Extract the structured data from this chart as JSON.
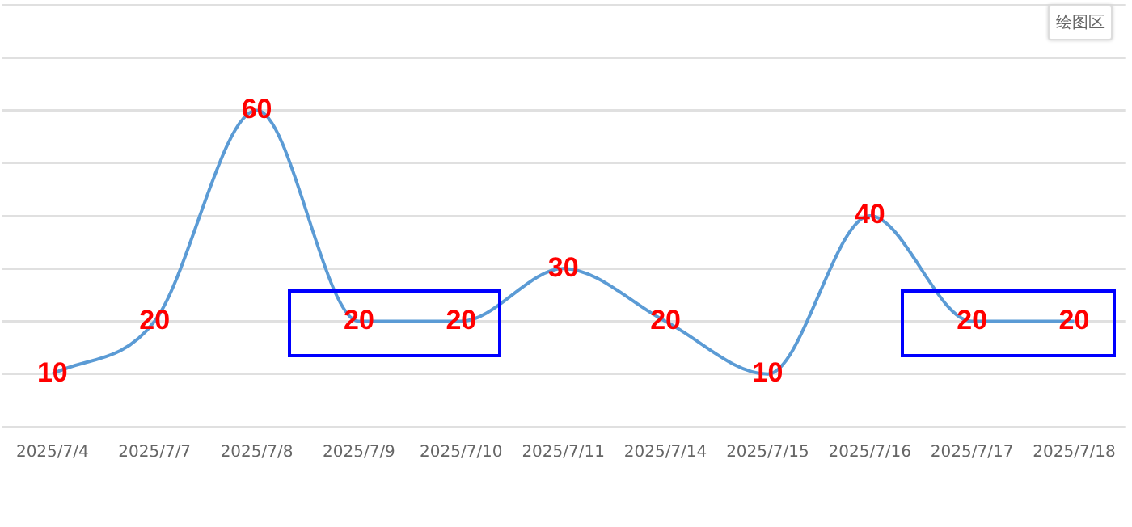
{
  "chart_data": {
    "type": "line",
    "categories": [
      "2025/7/4",
      "2025/7/7",
      "2025/7/8",
      "2025/7/9",
      "2025/7/10",
      "2025/7/11",
      "2025/7/14",
      "2025/7/15",
      "2025/7/16",
      "2025/7/17",
      "2025/7/18"
    ],
    "series": [
      {
        "color": "#5b9bd5",
        "values": [
          10,
          20,
          60,
          20,
          20,
          30,
          20,
          10,
          40,
          20,
          20
        ]
      }
    ],
    "ylim": [
      0,
      80
    ],
    "yticks": [
      {
        "value": 0,
        "label": null
      },
      {
        "value": 10,
        "label": null
      },
      {
        "value": 20,
        "label": null
      },
      {
        "value": 30,
        "label": null
      },
      {
        "value": 40,
        "label": null
      },
      {
        "value": 50,
        "label": null
      },
      {
        "value": 60,
        "label": null
      },
      {
        "value": 70,
        "label": null
      },
      {
        "value": 80,
        "label": null
      }
    ],
    "tick_labels": "x",
    "grid": "y",
    "legend": false,
    "marker": "none",
    "data_labels": true,
    "annotations": [
      "绘图区"
    ]
  }
}
